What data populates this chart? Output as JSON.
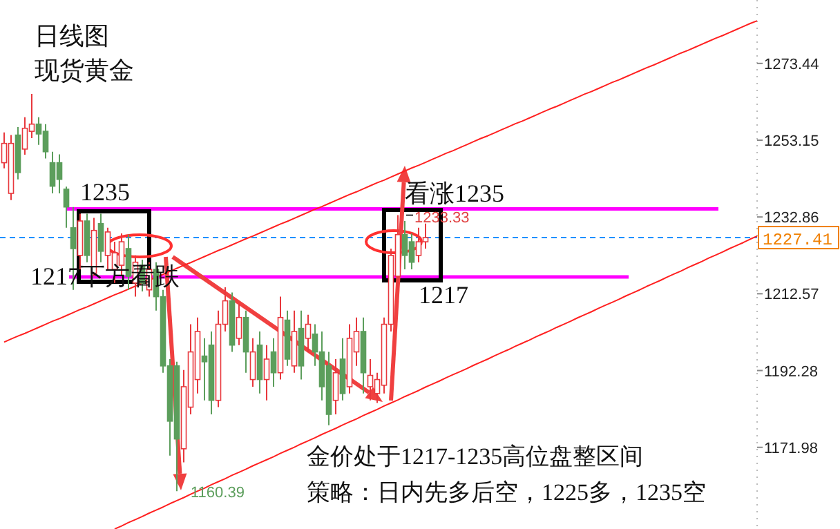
{
  "chart_data": {
    "type": "candlestick",
    "title": "日线图",
    "subtitle": "现货黄金",
    "categories": [
      null,
      null,
      null,
      null,
      null,
      null,
      null,
      null,
      null,
      null,
      null,
      null,
      null,
      null,
      null,
      null,
      null,
      null,
      null,
      null,
      null,
      null,
      null,
      null,
      null,
      null,
      null,
      null,
      null,
      null,
      null,
      null,
      null,
      null,
      null,
      null,
      null,
      null,
      null,
      null,
      null,
      null,
      null,
      null,
      null,
      null,
      null,
      null,
      null,
      null,
      null,
      null,
      null,
      null,
      null,
      null,
      null,
      null,
      null,
      null,
      null,
      null,
      null,
      null,
      null,
      null,
      null,
      null,
      null,
      null,
      null,
      null,
      null,
      null,
      null,
      null,
      null,
      null,
      null,
      null,
      null,
      null,
      null,
      null,
      null,
      null,
      null,
      null,
      null,
      null,
      null,
      null,
      null,
      null,
      null,
      null,
      null,
      null,
      null,
      null,
      null,
      null,
      null,
      null,
      null,
      null,
      null,
      null,
      null,
      null
    ],
    "series": [
      {
        "type": "line",
        "color": "#ff2020",
        "values": [
          1199.8,
          1200.6,
          1201.4,
          1202.1,
          1202.9,
          1203.7,
          1204.5,
          1205.3,
          1206.0,
          1206.8,
          1207.6,
          1208.4,
          1209.1,
          1209.9,
          1210.7,
          1211.5,
          1212.3,
          1213.0,
          1213.8,
          1214.6,
          1215.4,
          1216.2,
          1216.9,
          1217.7,
          1218.5,
          1219.3,
          1220.1,
          1220.8,
          1221.6,
          1222.4,
          1223.2,
          1224.0,
          1224.7,
          1225.5,
          1226.3,
          1227.1,
          1227.8,
          1228.6,
          1229.4,
          1230.2,
          1231.0,
          1231.7,
          1232.5,
          1233.3,
          1234.1,
          1234.9,
          1235.6,
          1236.4,
          1237.2,
          1238.0,
          1238.8,
          1239.5,
          1240.3,
          1241.1,
          1241.9,
          1242.6,
          1243.4,
          1244.2,
          1245.0,
          1245.8,
          1246.5,
          1247.3,
          1248.1,
          1248.9,
          1249.7,
          1250.4,
          1251.2,
          1252.0,
          1252.8,
          1253.6,
          1254.3,
          1255.1,
          1255.9,
          1256.7,
          1257.5,
          1258.2,
          1259.0,
          1259.8,
          1260.6,
          1261.4,
          1262.1,
          1262.9,
          1263.7,
          1264.5,
          1265.3,
          1266.0,
          1266.8,
          1267.6,
          1268.4,
          1269.1,
          1269.9,
          1270.7,
          1271.5,
          1272.3,
          1273.0,
          1273.8,
          1274.6,
          1275.4,
          1276.2,
          1276.9,
          1277.7,
          1278.5,
          1279.3,
          1280.1,
          1280.8,
          1281.6,
          1282.4,
          1283.2,
          1284.0,
          1284.7
        ]
      },
      {
        "type": "line",
        "color": "#ff2020",
        "values": [
          null,
          null,
          null,
          null,
          null,
          null,
          null,
          null,
          null,
          null,
          null,
          null,
          null,
          null,
          null,
          null,
          1150.4,
          1151.2,
          1152.1,
          1152.9,
          1153.7,
          1154.6,
          1155.4,
          1156.2,
          1157.1,
          1157.9,
          1158.7,
          1159.6,
          1160.4,
          1161.2,
          1162.1,
          1162.9,
          1163.7,
          1164.6,
          1165.4,
          1166.2,
          1167.1,
          1167.9,
          1168.7,
          1169.5,
          1170.4,
          1171.2,
          1172.0,
          1172.9,
          1173.7,
          1174.5,
          1175.4,
          1176.2,
          1177.0,
          1177.9,
          1178.7,
          1179.5,
          1180.4,
          1181.2,
          1182.0,
          1182.9,
          1183.7,
          1184.5,
          1185.4,
          1186.2,
          1187.0,
          1187.9,
          1188.7,
          1189.5,
          1190.4,
          1191.2,
          1192.0,
          1192.8,
          1193.7,
          1194.5,
          1195.3,
          1196.2,
          1197.0,
          1197.8,
          1198.7,
          1199.5,
          1200.3,
          1201.2,
          1202.0,
          1202.8,
          1203.7,
          1204.5,
          1205.3,
          1206.2,
          1207.0,
          1207.8,
          1208.7,
          1209.5,
          1210.3,
          1211.1,
          1212.0,
          1212.8,
          1213.6,
          1214.5,
          1215.3,
          1216.1,
          1217.0,
          1217.8,
          1218.6,
          1219.5,
          1220.3,
          1221.1,
          1222.0,
          1222.8,
          1223.6,
          1224.5,
          1225.3,
          1226.1,
          1227.0,
          1227.8
        ]
      }
    ],
    "ohlc": [
      [
        1247.2,
        1255.2,
        1245.7,
        1252.3
      ],
      [
        1239.1,
        1254.5,
        1237.3,
        1252.3
      ],
      [
        1254.5,
        1256.6,
        1242.8,
        1244.6
      ],
      [
        1250.8,
        1259.2,
        1249.3,
        1256.3
      ],
      [
        1255.5,
        1265.4,
        1253.7,
        1257.4
      ],
      [
        1257.4,
        1259.2,
        1251.9,
        1254.8
      ],
      [
        1255.5,
        1257.4,
        1248.3,
        1250.1
      ],
      [
        1247.2,
        1250.1,
        1239.1,
        1241.0
      ],
      [
        1247.2,
        1249.4,
        1239.1,
        1242.8
      ],
      [
        1240.2,
        1240.9,
        1230.0,
        1235.5
      ],
      [
        1230.0,
        1235.5,
        1213.6,
        1224.5
      ],
      [
        1222.7,
        1233.7,
        1219.0,
        1231.8
      ],
      [
        1231.8,
        1233.7,
        1220.9,
        1222.7
      ],
      [
        1218.0,
        1232.6,
        1217.2,
        1229.3
      ],
      [
        1231.1,
        1233.7,
        1220.9,
        1223.8
      ],
      [
        1222.7,
        1230.0,
        1219.0,
        1228.9
      ],
      [
        1219.0,
        1226.3,
        1215.4,
        1223.4
      ],
      [
        1220.1,
        1228.5,
        1217.2,
        1226.3
      ],
      [
        1224.5,
        1228.2,
        1213.6,
        1217.2
      ],
      [
        1215.4,
        1222.7,
        1211.8,
        1220.9
      ],
      [
        1220.1,
        1221.6,
        1213.2,
        1215.4
      ],
      [
        1213.6,
        1220.9,
        1211.8,
        1219.0
      ],
      [
        1219.0,
        1220.9,
        1208.1,
        1211.8
      ],
      [
        1211.8,
        1213.6,
        1191.7,
        1193.5
      ],
      [
        1193.5,
        1195.3,
        1169.8,
        1178.9
      ],
      [
        1193.5,
        1194.6,
        1160.39,
        1174.2
      ],
      [
        1171.6,
        1192.4,
        1168.0,
        1188.0
      ],
      [
        1182.6,
        1204.5,
        1180.7,
        1197.2
      ],
      [
        1189.9,
        1206.3,
        1186.2,
        1202.6
      ],
      [
        1196.1,
        1200.8,
        1184.4,
        1194.6
      ],
      [
        1199.0,
        1202.6,
        1180.7,
        1184.4
      ],
      [
        1184.4,
        1208.1,
        1182.6,
        1204.5
      ],
      [
        1204.5,
        1214.3,
        1202.6,
        1210.7
      ],
      [
        1210.7,
        1212.9,
        1197.2,
        1199.0
      ],
      [
        1200.8,
        1209.9,
        1199.0,
        1206.3
      ],
      [
        1206.3,
        1208.1,
        1191.7,
        1197.2
      ],
      [
        1189.9,
        1200.8,
        1188.0,
        1197.2
      ],
      [
        1199.0,
        1202.6,
        1186.2,
        1189.9
      ],
      [
        1189.9,
        1199.0,
        1184.4,
        1195.3
      ],
      [
        1197.2,
        1200.8,
        1188.0,
        1191.7
      ],
      [
        1191.7,
        1211.8,
        1189.9,
        1206.3
      ],
      [
        1205.6,
        1208.1,
        1193.5,
        1195.3
      ],
      [
        1193.5,
        1208.1,
        1191.7,
        1202.6
      ],
      [
        1203.4,
        1208.1,
        1189.9,
        1193.5
      ],
      [
        1200.8,
        1207.0,
        1197.2,
        1204.5
      ],
      [
        1201.9,
        1204.5,
        1193.5,
        1197.2
      ],
      [
        1197.2,
        1202.6,
        1184.4,
        1188.0
      ],
      [
        1193.5,
        1197.2,
        1177.8,
        1180.7
      ],
      [
        1184.4,
        1195.3,
        1180.7,
        1191.7
      ],
      [
        1195.3,
        1200.8,
        1184.4,
        1186.2
      ],
      [
        1188.0,
        1204.5,
        1186.2,
        1200.8
      ],
      [
        1197.2,
        1206.3,
        1193.5,
        1202.6
      ],
      [
        1202.6,
        1206.3,
        1186.2,
        1191.7
      ],
      [
        1188.0,
        1195.3,
        1184.4,
        1191.0
      ],
      [
        1186.2,
        1191.7,
        1183.7,
        1189.9
      ],
      [
        1188.4,
        1206.3,
        1186.2,
        1204.5
      ],
      [
        1204.5,
        1224.5,
        1202.6,
        1222.7
      ],
      [
        1217.2,
        1233.33,
        1213.6,
        1228.2
      ],
      [
        1228.2,
        1231.8,
        1219.0,
        1222.7
      ],
      [
        1226.3,
        1228.5,
        1219.0,
        1220.9
      ],
      [
        1222.7,
        1230.0,
        1220.9,
        1226.3
      ],
      [
        1226.3,
        1231.1,
        1224.5,
        1227.41
      ],
      null,
      null,
      null,
      null,
      null,
      null,
      null,
      null,
      null,
      null,
      null,
      null,
      null,
      null,
      null,
      null,
      null,
      null,
      null,
      null,
      null,
      null,
      null,
      null,
      null,
      null,
      null,
      null,
      null,
      null,
      null,
      null,
      null,
      null,
      null,
      null,
      null,
      null,
      null,
      null,
      null,
      null,
      null,
      null,
      null,
      null,
      null,
      null
    ],
    "colors": [
      "#e8383d",
      "#e8383d",
      "#5c9e5c",
      "#e8383d",
      "#e8383d",
      "#5c9e5c",
      "#5c9e5c",
      "#5c9e5c",
      "#5c9e5c",
      "#5c9e5c",
      "#5c9e5c",
      "#e8383d",
      "#5c9e5c",
      "#e8383d",
      "#5c9e5c",
      "#e8383d",
      "#e8383d",
      "#e8383d",
      "#5c9e5c",
      "#e8383d",
      "#5c9e5c",
      "#e8383d",
      "#5c9e5c",
      "#5c9e5c",
      "#5c9e5c",
      "#5c9e5c",
      "#e8383d",
      "#e8383d",
      "#e8383d",
      "#5c9e5c",
      "#5c9e5c",
      "#e8383d",
      "#e8383d",
      "#5c9e5c",
      "#e8383d",
      "#5c9e5c",
      "#e8383d",
      "#5c9e5c",
      "#e8383d",
      "#5c9e5c",
      "#e8383d",
      "#5c9e5c",
      "#e8383d",
      "#5c9e5c",
      "#e8383d",
      "#5c9e5c",
      "#5c9e5c",
      "#5c9e5c",
      "#e8383d",
      "#5c9e5c",
      "#e8383d",
      "#e8383d",
      "#5c9e5c",
      "#e8383d",
      "#e8383d",
      "#e8383d",
      "#e8383d",
      "#e8383d",
      "#5c9e5c",
      "#5c9e5c",
      "#e8383d",
      "#e8383d",
      null,
      null,
      null,
      null,
      null,
      null,
      null,
      null,
      null,
      null,
      null,
      null,
      null,
      null,
      null,
      null,
      null,
      null,
      null,
      null,
      null,
      null,
      null,
      null,
      null,
      null,
      null,
      null,
      null,
      null,
      null,
      null,
      null,
      null,
      null,
      null,
      null,
      null,
      null,
      null,
      null,
      null,
      null,
      null,
      null,
      null,
      null,
      null
    ],
    "ylim": [
      1150.4,
      1290.2
    ],
    "yticks": [
      1171.98,
      1192.28,
      1212.57,
      1232.86,
      1253.15,
      1273.44
    ],
    "tick_labels": "y",
    "ref_lines": [
      {
        "axis": "y",
        "value": 1235,
        "label": "1235",
        "color": "#ff00ff"
      },
      {
        "axis": "y",
        "value": 1217,
        "label": "1217",
        "color": "#ff00ff"
      },
      {
        "axis": "y",
        "value": 1227.41,
        "label": "1227.41",
        "color": "#1e90ff",
        "line_style": "dashed"
      }
    ],
    "annotations": [
      "1217下方看跌",
      "看涨1235",
      {
        "text": "1233.33",
        "y": 1233.33
      },
      "1160.39",
      "金价处于1217-1235高位盘整区间",
      "策略：日内先多后空，1225多，1235空"
    ]
  }
}
